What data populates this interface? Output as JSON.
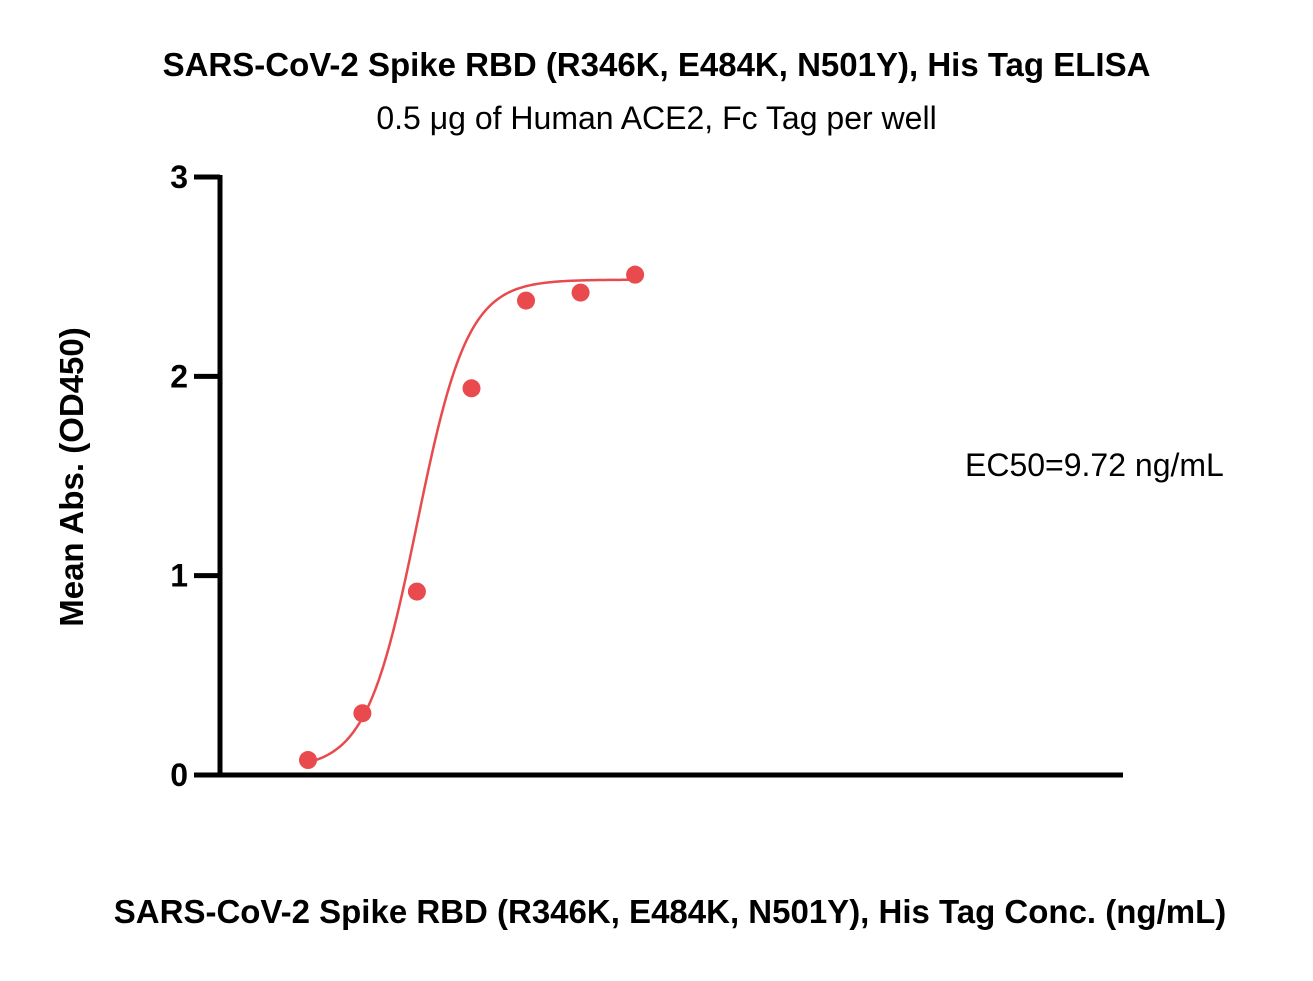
{
  "chart_data": {
    "type": "scatter",
    "title": "SARS-CoV-2 Spike RBD (R346K, E484K, N501Y), His Tag ELISA",
    "subtitle": "0.5 μg of Human ACE2, Fc Tag per well",
    "xlabel": "SARS-CoV-2 Spike RBD (R346K, E484K, N501Y), His Tag Conc. (ng/mL)",
    "ylabel": "Mean Abs. (OD450)",
    "annotation": "EC50=9.72 ng/mL",
    "x_scale": "log",
    "x_tick_labels": [],
    "ylim": [
      0,
      3
    ],
    "y_ticks": [
      0,
      1,
      2,
      3
    ],
    "grid": false,
    "series_color": "#e84a4e",
    "x": [
      0.61,
      2.43,
      9.72,
      38.9,
      155.5,
      622,
      2488
    ],
    "y": [
      0.075,
      0.31,
      0.92,
      1.94,
      2.38,
      2.42,
      2.51
    ],
    "fit": {
      "model": "4PL",
      "bottom": 0.03,
      "top": 2.485,
      "ec50": 9.72,
      "hill": 1.55
    }
  }
}
